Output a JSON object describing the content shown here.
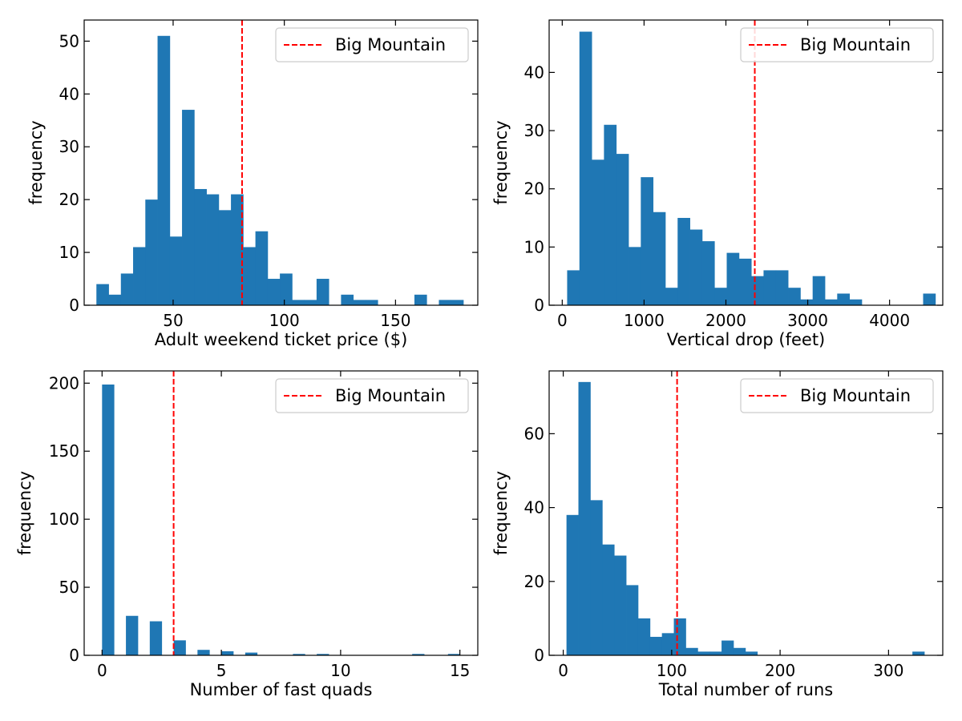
{
  "chart_data": [
    {
      "type": "bar",
      "xlabel": "Adult weekend ticket price ($)",
      "ylabel": "frequency",
      "xlim": [
        10,
        187
      ],
      "ylim": [
        0,
        54
      ],
      "xticks": [
        50,
        100,
        150
      ],
      "yticks": [
        0,
        10,
        20,
        30,
        40,
        50
      ],
      "bin_edges": [
        15.5,
        21,
        26.5,
        32,
        37.5,
        43,
        48.5,
        54,
        59.5,
        65,
        70.5,
        76,
        81.5,
        87,
        92.5,
        98,
        103.5,
        109,
        114.5,
        120,
        125.5,
        131,
        136.5,
        142,
        147.5,
        153,
        158.5,
        164,
        169.5,
        175,
        180.5
      ],
      "values": [
        4,
        2,
        6,
        11,
        20,
        51,
        13,
        37,
        22,
        21,
        18,
        21,
        11,
        14,
        5,
        6,
        1,
        1,
        5,
        0,
        2,
        1,
        1,
        0,
        0,
        0,
        2,
        0,
        1,
        1
      ],
      "reference_line": {
        "label": "Big Mountain",
        "value": 81,
        "color": "#ff0000"
      },
      "legend": "top-right",
      "bar_color": "#1f77b4"
    },
    {
      "type": "bar",
      "xlabel": "Vertical drop (feet)",
      "ylabel": "frequency",
      "xlim": [
        -160,
        4650
      ],
      "ylim": [
        0,
        49
      ],
      "xticks": [
        0,
        1000,
        2000,
        3000,
        4000
      ],
      "yticks": [
        0,
        10,
        20,
        30,
        40
      ],
      "bin_edges": [
        60,
        210,
        360,
        510,
        660,
        810,
        960,
        1110,
        1260,
        1410,
        1560,
        1710,
        1860,
        2010,
        2160,
        2310,
        2460,
        2610,
        2760,
        2910,
        3060,
        3210,
        3360,
        3510,
        3660,
        3810,
        3960,
        4110,
        4260,
        4410,
        4560
      ],
      "values": [
        6,
        47,
        25,
        31,
        26,
        10,
        22,
        16,
        3,
        15,
        13,
        11,
        3,
        9,
        8,
        5,
        6,
        6,
        3,
        1,
        5,
        1,
        2,
        1,
        0,
        0,
        0,
        0,
        0,
        2
      ],
      "reference_line": {
        "label": "Big Mountain",
        "value": 2353,
        "color": "#ff0000"
      },
      "legend": "top-right",
      "bar_color": "#1f77b4"
    },
    {
      "type": "bar",
      "xlabel": "Number of fast quads",
      "ylabel": "frequency",
      "xlim": [
        -0.75,
        15.75
      ],
      "ylim": [
        0,
        209
      ],
      "xticks": [
        0,
        5,
        10,
        15
      ],
      "yticks": [
        0,
        50,
        100,
        150,
        200
      ],
      "bin_edges": [
        0,
        0.5,
        1,
        1.5,
        2,
        2.5,
        3,
        3.5,
        4,
        4.5,
        5,
        5.5,
        6,
        6.5,
        7,
        7.5,
        8,
        8.5,
        9,
        9.5,
        10,
        10.5,
        11,
        11.5,
        12,
        12.5,
        13,
        13.5,
        14,
        14.5,
        15
      ],
      "values": [
        199,
        0,
        29,
        0,
        25,
        0,
        11,
        0,
        4,
        0,
        3,
        0,
        2,
        0,
        0,
        0,
        1,
        0,
        1,
        0,
        0,
        0,
        0,
        0,
        0,
        0,
        1,
        0,
        0,
        1
      ],
      "reference_line": {
        "label": "Big Mountain",
        "value": 3,
        "color": "#ff0000"
      },
      "legend": "top-right",
      "bar_color": "#1f77b4"
    },
    {
      "type": "bar",
      "xlabel": "Total number of runs",
      "ylabel": "frequency",
      "xlim": [
        -13,
        350
      ],
      "ylim": [
        0,
        77
      ],
      "xticks": [
        0,
        100,
        200,
        300
      ],
      "yticks": [
        0,
        20,
        40,
        60
      ],
      "bin_edges": [
        3,
        14,
        25,
        36,
        47,
        58,
        69,
        80,
        91,
        102,
        113,
        124,
        135,
        146,
        157,
        168,
        179,
        190,
        201,
        212,
        223,
        234,
        245,
        256,
        267,
        278,
        289,
        300,
        311,
        322,
        333
      ],
      "values": [
        38,
        74,
        42,
        30,
        27,
        19,
        10,
        5,
        6,
        10,
        2,
        1,
        1,
        4,
        2,
        1,
        0,
        0,
        0,
        0,
        0,
        0,
        0,
        0,
        0,
        0,
        0,
        0,
        0,
        1
      ],
      "reference_line": {
        "label": "Big Mountain",
        "value": 105,
        "color": "#ff0000"
      },
      "legend": "top-right",
      "bar_color": "#1f77b4"
    }
  ]
}
